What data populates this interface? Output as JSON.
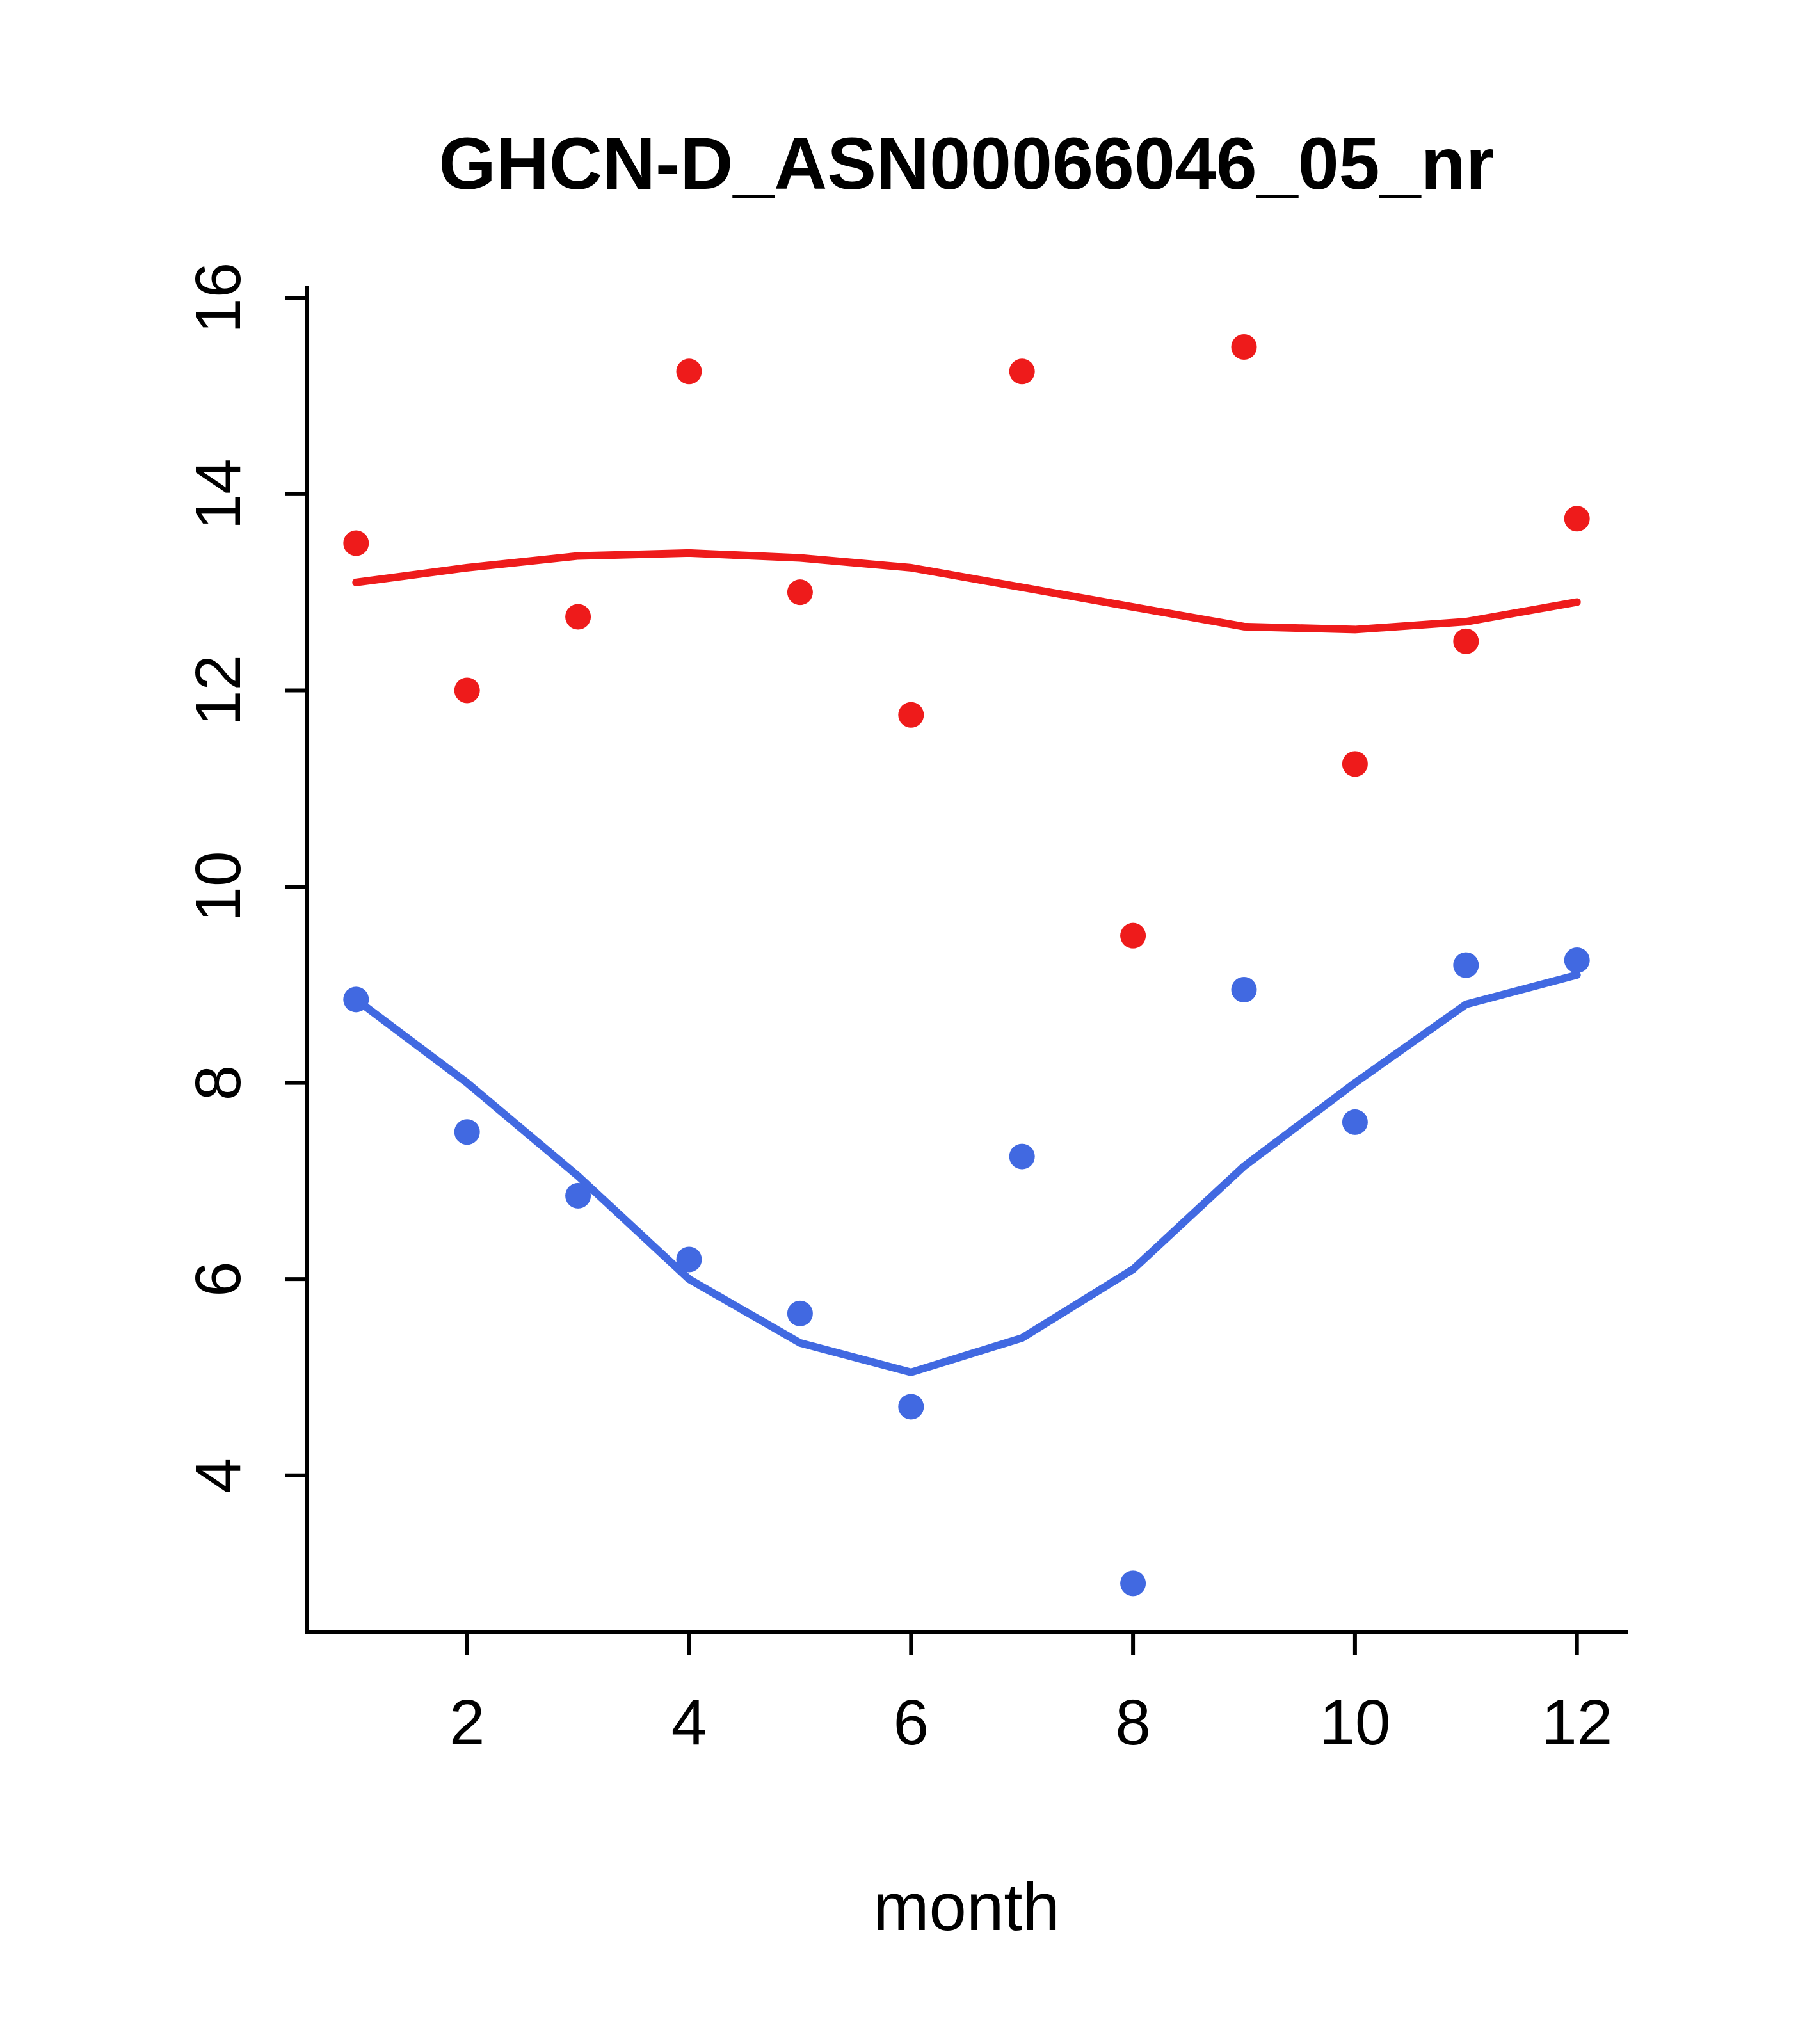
{
  "title": "GHCN-D_ASN00066046_05_nr",
  "chart_data": {
    "type": "scatter",
    "title": "GHCN-D_ASN00066046_05_nr",
    "xlabel": "month",
    "ylabel": "",
    "x": [
      1,
      2,
      3,
      4,
      5,
      6,
      7,
      8,
      9,
      10,
      11,
      12
    ],
    "xlim": [
      0.56,
      12.44
    ],
    "ylim": [
      2.4,
      16.1
    ],
    "xticks": [
      2,
      4,
      6,
      8,
      10,
      12
    ],
    "yticks": [
      4,
      6,
      8,
      10,
      12,
      14,
      16
    ],
    "grid": false,
    "legend": "none",
    "colors": {
      "red_series": "#ee1b1b",
      "blue_series": "#4169e1"
    },
    "series": [
      {
        "name": "red-points",
        "kind": "points",
        "color": "#ee1b1b",
        "values": [
          13.5,
          12.0,
          12.75,
          15.25,
          13.0,
          11.75,
          15.25,
          9.5,
          15.5,
          11.25,
          12.5,
          13.75
        ]
      },
      {
        "name": "blue-points",
        "kind": "points",
        "color": "#4169e1",
        "values": [
          8.85,
          7.5,
          6.85,
          6.2,
          5.65,
          4.7,
          7.25,
          2.9,
          8.95,
          7.6,
          9.2,
          9.25
        ]
      },
      {
        "name": "red-smooth-line",
        "kind": "line",
        "color": "#ee1b1b",
        "values": [
          13.1,
          13.25,
          13.37,
          13.4,
          13.35,
          13.25,
          13.05,
          12.85,
          12.65,
          12.62,
          12.7,
          12.9
        ]
      },
      {
        "name": "blue-smooth-line",
        "kind": "line",
        "color": "#4169e1",
        "values": [
          8.85,
          8.0,
          7.05,
          6.0,
          5.35,
          5.05,
          5.4,
          6.1,
          7.15,
          8.0,
          8.8,
          9.1
        ]
      }
    ]
  }
}
